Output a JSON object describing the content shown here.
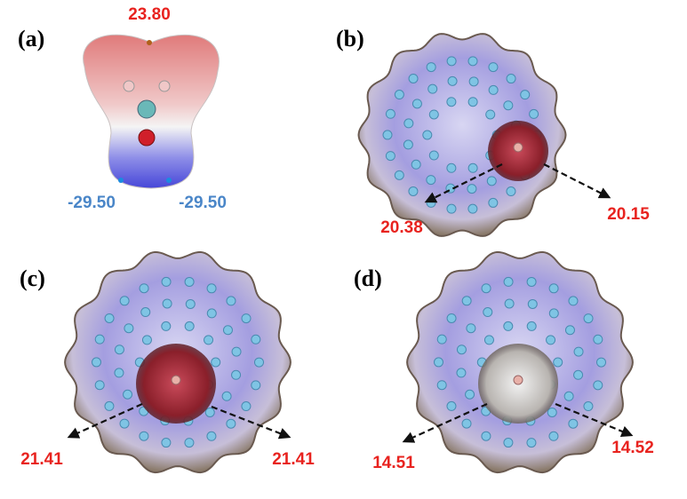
{
  "panels": [
    {
      "label": "(a)",
      "values": [
        "23.80",
        "-29.50",
        "-29.50"
      ]
    },
    {
      "label": "(b)",
      "values": [
        "20.38",
        "20.15"
      ]
    },
    {
      "label": "(c)",
      "values": [
        "21.41",
        "21.41"
      ]
    },
    {
      "label": "(d)",
      "values": [
        "14.51",
        "14.52"
      ]
    }
  ]
}
